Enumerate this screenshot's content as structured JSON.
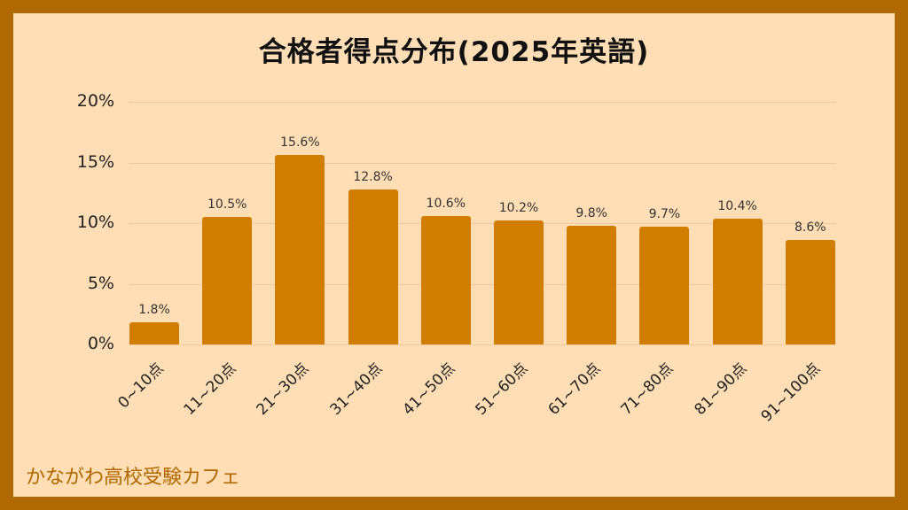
{
  "title": "合格者得点分布(2025年英語)",
  "footer": "かながわ高校受験カフェ",
  "colors": {
    "border": "#B06800",
    "background": "#FFDEB5",
    "bar": "#D17D00"
  },
  "chart_data": {
    "type": "bar",
    "title": "合格者得点分布(2025年英語)",
    "xlabel": "",
    "ylabel": "",
    "categories": [
      "0~10点",
      "11~20点",
      "21~30点",
      "31~40点",
      "41~50点",
      "51~60点",
      "61~70点",
      "71~80点",
      "81~90点",
      "91~100点"
    ],
    "values": [
      1.8,
      10.5,
      15.6,
      12.8,
      10.6,
      10.2,
      9.8,
      9.7,
      10.4,
      8.6
    ],
    "data_labels": [
      "1.8%",
      "10.5%",
      "15.6%",
      "12.8%",
      "10.6%",
      "10.2%",
      "9.8%",
      "9.7%",
      "10.4%",
      "8.6%"
    ],
    "yticks": [
      "0%",
      "5%",
      "10%",
      "15%",
      "20%"
    ],
    "ylim": [
      0,
      20
    ],
    "grid": true,
    "legend": null,
    "unit": "%"
  }
}
